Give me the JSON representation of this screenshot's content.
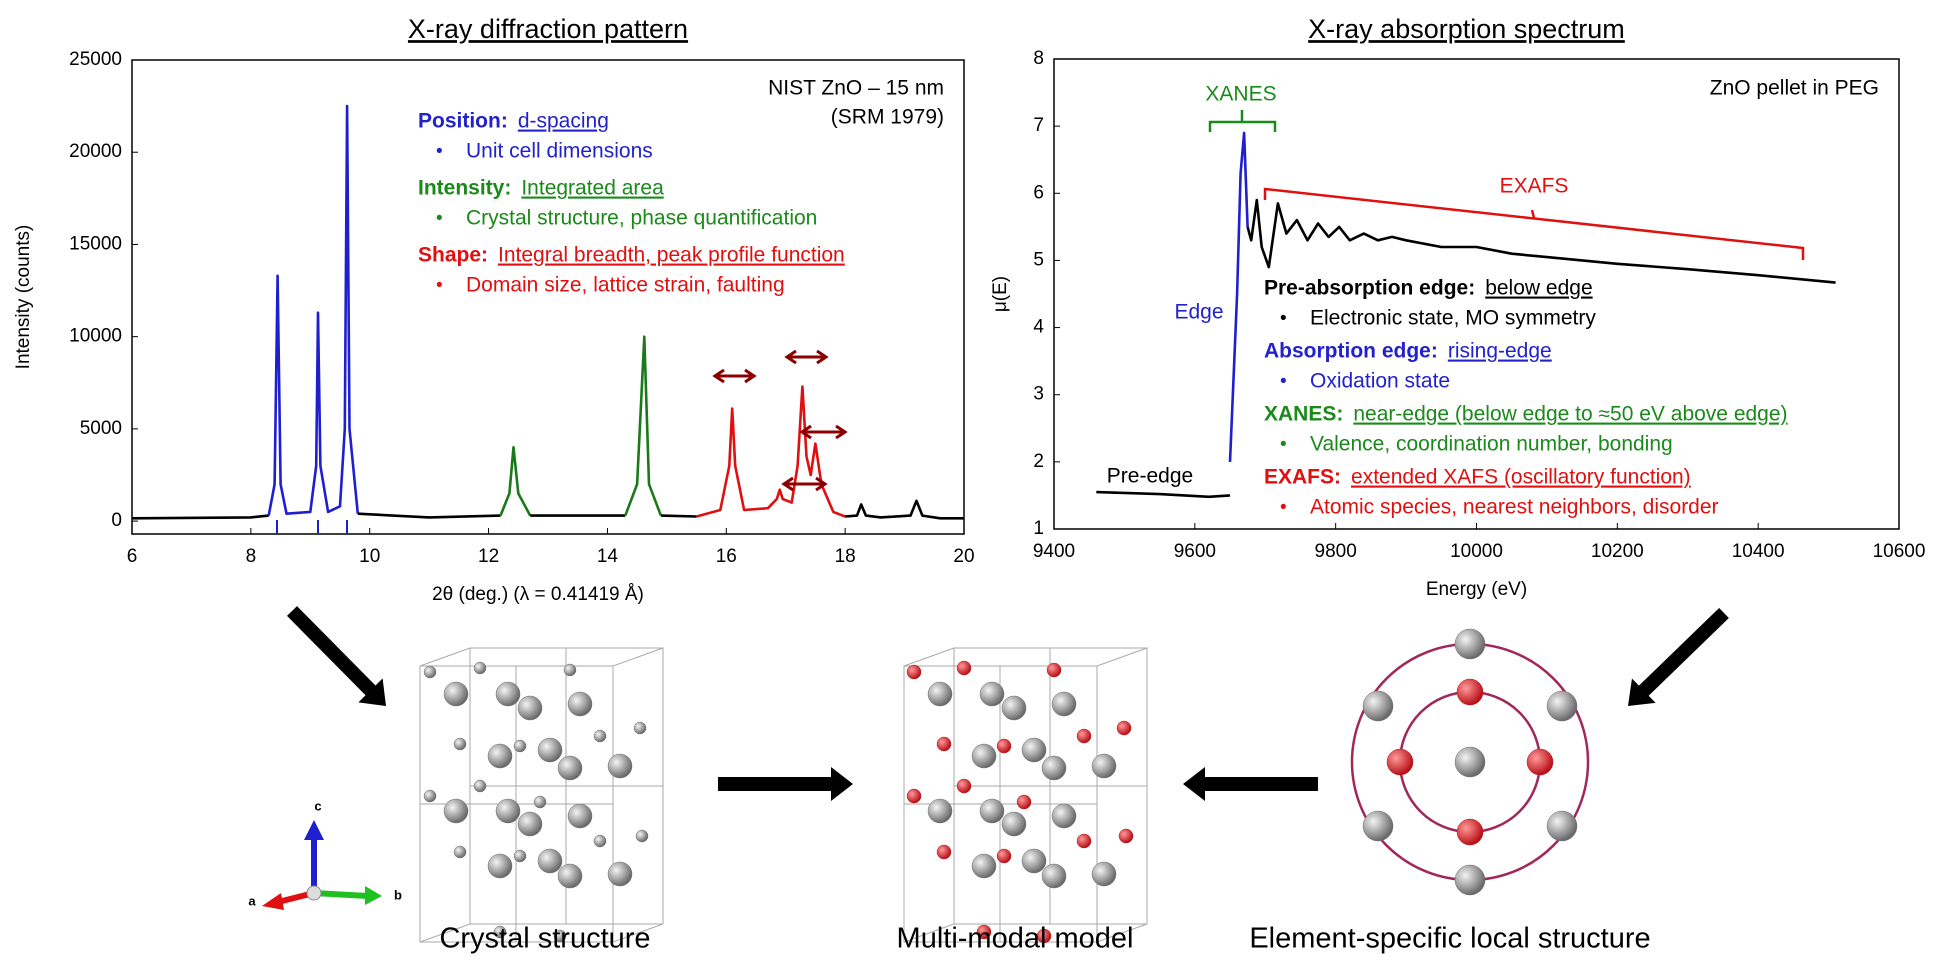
{
  "chart_data": [
    {
      "type": "line",
      "title": "X-ray diffraction pattern",
      "x_label": "2θ (deg.)  (λ = 0.41419 Å)",
      "y_label": "Intensity (counts)",
      "xlim": [
        6,
        20
      ],
      "ylim": [
        -700,
        25000
      ],
      "xticks": [
        6,
        8,
        10,
        12,
        14,
        16,
        18,
        20
      ],
      "yticks": [
        0,
        5000,
        10000,
        15000,
        20000,
        25000
      ],
      "sample": [
        "NIST ZnO – 15 nm",
        "(SRM 1979)"
      ],
      "series": [
        {
          "color": "#000000",
          "x": [
            6,
            8.0,
            8.3
          ],
          "values": [
            150,
            200,
            300
          ]
        },
        {
          "color": "#1f1fd0",
          "x": [
            8.3,
            8.4,
            8.45,
            8.5,
            8.6,
            9.0,
            9.1,
            9.13,
            9.17,
            9.3,
            9.5,
            9.58,
            9.62,
            9.66,
            9.8
          ],
          "values": [
            300,
            2000,
            13300,
            2000,
            400,
            500,
            3000,
            11300,
            3000,
            500,
            800,
            5000,
            22500,
            5000,
            400
          ]
        },
        {
          "color": "#000000",
          "x": [
            9.8,
            11,
            12.2
          ],
          "values": [
            400,
            200,
            300
          ]
        },
        {
          "color": "#1a7a1a",
          "x": [
            12.2,
            12.35,
            12.42,
            12.5,
            12.7
          ],
          "values": [
            300,
            1500,
            4000,
            1500,
            300
          ]
        },
        {
          "color": "#000000",
          "x": [
            12.7,
            14.3
          ],
          "values": [
            300,
            300
          ]
        },
        {
          "color": "#1a7a1a",
          "x": [
            14.3,
            14.5,
            14.62,
            14.7,
            14.9
          ],
          "values": [
            300,
            2000,
            10000,
            2000,
            300
          ]
        },
        {
          "color": "#000000",
          "x": [
            14.9,
            15.5
          ],
          "values": [
            300,
            250
          ]
        },
        {
          "color": "#e01010",
          "x": [
            15.5,
            15.9,
            16.05,
            16.1,
            16.15,
            16.3,
            16.7,
            16.85,
            16.9,
            16.95,
            17.1,
            17.2,
            17.28,
            17.35,
            17.42,
            17.5,
            17.6,
            17.8,
            18.0
          ],
          "values": [
            250,
            600,
            3000,
            6100,
            3000,
            600,
            700,
            1200,
            1700,
            1200,
            1000,
            3000,
            7300,
            3500,
            2500,
            4200,
            2000,
            500,
            250
          ]
        },
        {
          "color": "#000000",
          "x": [
            18.0,
            18.2,
            18.27,
            18.35,
            18.6,
            19.1,
            19.2,
            19.3,
            19.6,
            20
          ],
          "values": [
            250,
            300,
            900,
            300,
            200,
            300,
            1100,
            300,
            150,
            150
          ]
        }
      ],
      "notes": [
        {
          "label": "Position:",
          "detail": "d-spacing",
          "bullet": "Unit cell dimensions",
          "color": "#2222cc"
        },
        {
          "label": "Intensity:",
          "detail": "Integrated area",
          "bullet": "Crystal structure, phase quantification",
          "color": "#1a8a1a"
        },
        {
          "label": "Shape:",
          "detail": "Integral breadth, peak profile function",
          "bullet": "Domain size, lattice strain, faulting",
          "color": "#e01010"
        }
      ]
    },
    {
      "type": "line",
      "title": "X-ray absorption spectrum",
      "x_label": "Energy (eV)",
      "y_label": "μ(E)",
      "xlim": [
        9400,
        10600
      ],
      "ylim": [
        1,
        8
      ],
      "xticks": [
        9400,
        9600,
        9800,
        10000,
        10200,
        10400,
        10600
      ],
      "yticks": [
        1,
        2,
        3,
        4,
        5,
        6,
        7,
        8
      ],
      "sample": [
        "ZnO pellet in PEG"
      ],
      "labels": {
        "xanes": "XANES",
        "exafs": "EXAFS",
        "edge": "Edge",
        "pre_edge": "Pre-edge"
      },
      "series": [
        {
          "color": "#000000",
          "x": [
            9460,
            9550,
            9620,
            9650
          ],
          "values": [
            1.55,
            1.52,
            1.48,
            1.5
          ]
        },
        {
          "color": "#1f1fd0",
          "x": [
            9650,
            9660,
            9665,
            9670,
            9675
          ],
          "values": [
            2.0,
            4.5,
            6.3,
            6.9,
            5.5
          ]
        },
        {
          "color": "#000000",
          "x": [
            9675,
            9680,
            9688,
            9695,
            9705,
            9718,
            9730,
            9745,
            9760,
            9775,
            9790,
            9805,
            9820,
            9840,
            9860,
            9880,
            9900,
            9950,
            10000,
            10050,
            10100,
            10200,
            10300,
            10400,
            10510
          ],
          "values": [
            5.5,
            5.3,
            5.9,
            5.2,
            4.9,
            5.85,
            5.4,
            5.6,
            5.3,
            5.55,
            5.35,
            5.5,
            5.3,
            5.4,
            5.3,
            5.35,
            5.3,
            5.2,
            5.2,
            5.1,
            5.05,
            4.95,
            4.87,
            4.78,
            4.67
          ]
        }
      ],
      "notes": [
        {
          "label": "Pre-absorption edge:",
          "detail": "below edge",
          "bullet": "Electronic state, MO symmetry",
          "color": "#000000"
        },
        {
          "label": "Absorption edge:",
          "detail": "rising-edge",
          "bullet": "Oxidation state",
          "color": "#2222cc"
        },
        {
          "label": "XANES:",
          "detail": "near-edge (below edge to ≈50 eV above edge)",
          "bullet": "Valence, coordination number, bonding",
          "color": "#1a8a1a"
        },
        {
          "label": "EXAFS:",
          "detail": "extended XAFS (oscillatory function)",
          "bullet": "Atomic species, nearest neighbors, disorder",
          "color": "#e01010"
        }
      ]
    }
  ],
  "diagram": {
    "captions": [
      "Crystal structure",
      "Multi-modal model",
      "Element-specific local structure"
    ],
    "bullet": "•",
    "axes": [
      "a",
      "b",
      "c"
    ]
  }
}
